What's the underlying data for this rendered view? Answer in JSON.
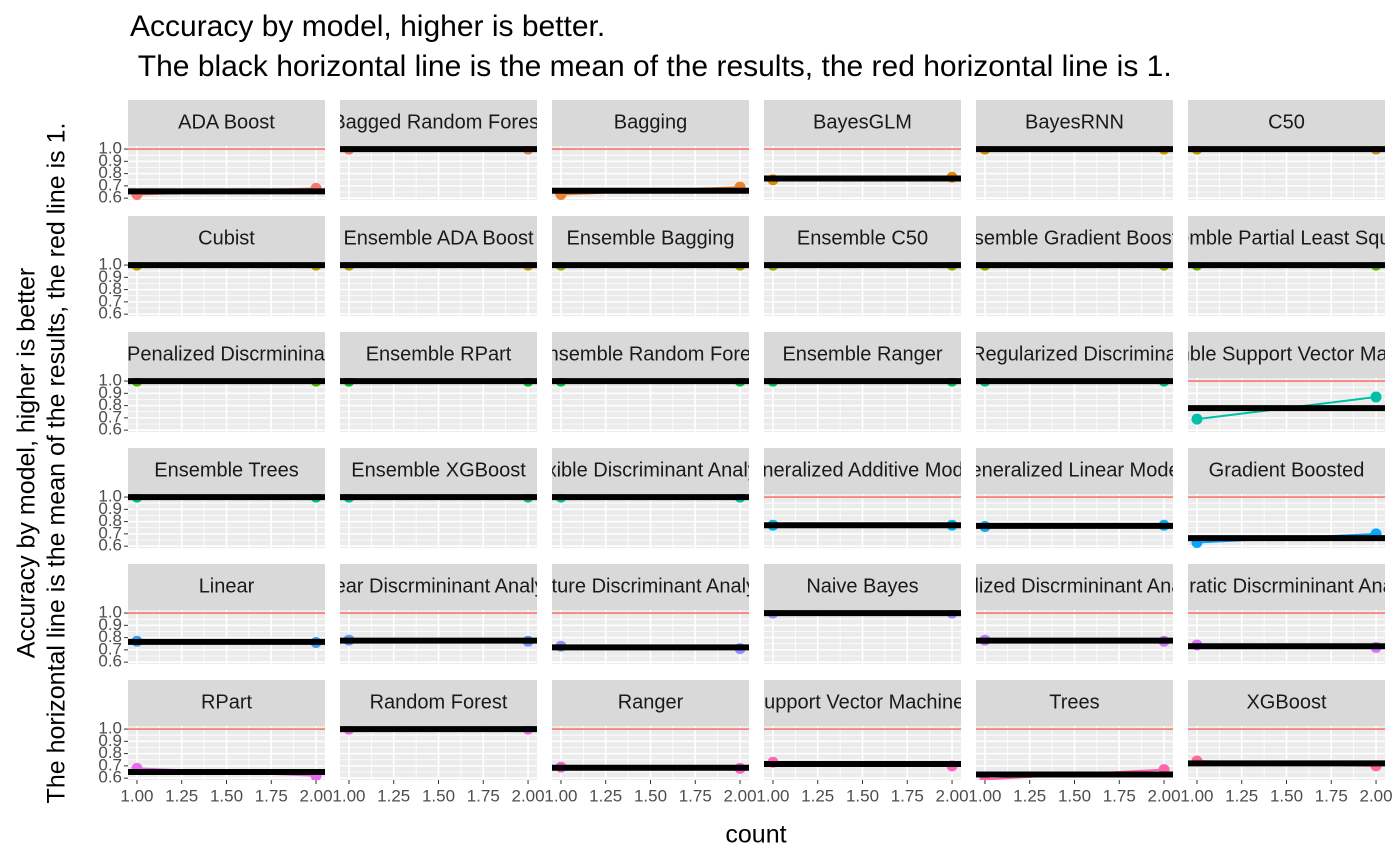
{
  "chart_data": {
    "type": "line",
    "title": "Accuracy by model, higher is better.",
    "subtitle": " The black horizontal line is the mean of the results, the red horizontal line is 1.",
    "x_label": "count",
    "y_label": [
      "Accuracy by model, higher is better",
      "The horizontal line is the mean of the results, the red line is 1."
    ],
    "xlim": [
      0.95,
      2.05
    ],
    "xticks": [
      {
        "value": 1,
        "label": "1.00"
      },
      {
        "value": 1.25,
        "label": "1.25"
      },
      {
        "value": 1.5,
        "label": "1.50"
      },
      {
        "value": 1.75,
        "label": "1.75"
      },
      {
        "value": 2,
        "label": "2.00"
      }
    ],
    "ylim": [
      0.585,
      1.025
    ],
    "yticks": [
      0.6,
      0.7,
      0.8,
      0.9,
      {
        "value": 1,
        "label": "1.0"
      }
    ],
    "grid": true,
    "columns": 6,
    "mean_color": "#000000",
    "reference_line": {
      "value": 1,
      "color": "#F8766D"
    },
    "panels": [
      {
        "name": "ADA Boost",
        "color": "#F8766D",
        "x": [
          1,
          2
        ],
        "values": [
          0.63,
          0.68
        ],
        "mean": 0.655
      },
      {
        "name": "Bagged Random Forest",
        "color": "#F27D53",
        "x": [
          1,
          2
        ],
        "values": [
          1,
          1
        ],
        "mean": 1
      },
      {
        "name": "Bagging",
        "color": "#EA8331",
        "x": [
          1,
          2
        ],
        "values": [
          0.63,
          0.69
        ],
        "mean": 0.66
      },
      {
        "name": "BayesGLM",
        "color": "#E18A00",
        "x": [
          1,
          2
        ],
        "values": [
          0.75,
          0.77
        ],
        "mean": 0.76
      },
      {
        "name": "BayesRNN",
        "color": "#D89000",
        "x": [
          1,
          2
        ],
        "values": [
          1,
          1
        ],
        "mean": 1
      },
      {
        "name": "C50",
        "color": "#CD9600",
        "x": [
          1,
          2
        ],
        "values": [
          1,
          1
        ],
        "mean": 1
      },
      {
        "name": "Cubist",
        "color": "#C09B00",
        "x": [
          1,
          2
        ],
        "values": [
          1,
          1
        ],
        "mean": 1
      },
      {
        "name": "Ensemble ADA Boost",
        "color": "#B3A000",
        "x": [
          1,
          2
        ],
        "values": [
          1,
          1
        ],
        "mean": 1
      },
      {
        "name": "Ensemble Bagging",
        "color": "#A3A500",
        "x": [
          1,
          2
        ],
        "values": [
          1,
          1
        ],
        "mean": 1
      },
      {
        "name": "Ensemble C50",
        "color": "#93AA00",
        "x": [
          1,
          2
        ],
        "values": [
          1,
          1
        ],
        "mean": 1
      },
      {
        "name": "Ensemble Gradient Boosted",
        "color": "#7FAE00",
        "x": [
          1,
          2
        ],
        "values": [
          1,
          1
        ],
        "mean": 1
      },
      {
        "name": "Ensemble Partial Least Squares",
        "color": "#67B100",
        "x": [
          1,
          2
        ],
        "values": [
          1,
          1
        ],
        "mean": 1
      },
      {
        "name": "Ensemble Penalized Discrmininant Analysis",
        "color": "#46B500",
        "x": [
          1,
          2
        ],
        "values": [
          1,
          1
        ],
        "mean": 1
      },
      {
        "name": "Ensemble RPart",
        "color": "#00B81F",
        "x": [
          1,
          2
        ],
        "values": [
          1,
          1
        ],
        "mean": 1
      },
      {
        "name": "Ensemble Random Forest",
        "color": "#00BA42",
        "x": [
          1,
          2
        ],
        "values": [
          1,
          1
        ],
        "mean": 1
      },
      {
        "name": "Ensemble Ranger",
        "color": "#00BC5A",
        "x": [
          1,
          2
        ],
        "values": [
          1,
          1
        ],
        "mean": 1
      },
      {
        "name": "Ensemble Regularized Discriminant Analysis",
        "color": "#00BE6E",
        "x": [
          1,
          2
        ],
        "values": [
          1,
          1
        ],
        "mean": 1
      },
      {
        "name": "Ensemble Support Vector Machines",
        "color": "#00C0AA",
        "x": [
          1,
          2
        ],
        "values": [
          0.69,
          0.87
        ],
        "mean": 0.78
      },
      {
        "name": "Ensemble Trees",
        "color": "#00C091",
        "x": [
          1,
          2
        ],
        "values": [
          1,
          1
        ],
        "mean": 1
      },
      {
        "name": "Ensemble XGBoost",
        "color": "#00C0A2",
        "x": [
          1,
          2
        ],
        "values": [
          1,
          1
        ],
        "mean": 1
      },
      {
        "name": "Flexible Discriminant Analysis",
        "color": "#00C0B2",
        "x": [
          1,
          2
        ],
        "values": [
          1,
          1
        ],
        "mean": 1
      },
      {
        "name": "Generalized Additive Models",
        "color": "#00B5EA",
        "x": [
          1,
          2
        ],
        "values": [
          0.77,
          0.77
        ],
        "mean": 0.77
      },
      {
        "name": "Generalized Linear Models",
        "color": "#00AFF5",
        "x": [
          1,
          2
        ],
        "values": [
          0.76,
          0.77
        ],
        "mean": 0.765
      },
      {
        "name": "Gradient Boosted",
        "color": "#00A9FF",
        "x": [
          1,
          2
        ],
        "values": [
          0.63,
          0.7
        ],
        "mean": 0.665
      },
      {
        "name": "Linear",
        "color": "#35A2FF",
        "x": [
          1,
          2
        ],
        "values": [
          0.77,
          0.76
        ],
        "mean": 0.765
      },
      {
        "name": "Linear Discrmininant Analysis",
        "color": "#619CFF",
        "x": [
          1,
          2
        ],
        "values": [
          0.78,
          0.77
        ],
        "mean": 0.775
      },
      {
        "name": "Mixture Discriminant Analysis",
        "color": "#8F91FF",
        "x": [
          1,
          2
        ],
        "values": [
          0.73,
          0.71
        ],
        "mean": 0.72
      },
      {
        "name": "Naive Bayes",
        "color": "#AF86FF",
        "x": [
          1,
          2
        ],
        "values": [
          1,
          1
        ],
        "mean": 1
      },
      {
        "name": "Penalized Discrmininant Analysis",
        "color": "#C77CFF",
        "x": [
          1,
          2
        ],
        "values": [
          0.78,
          0.77
        ],
        "mean": 0.775
      },
      {
        "name": "Quadratic Discrmininant Analysis",
        "color": "#DC71FA",
        "x": [
          1,
          2
        ],
        "values": [
          0.74,
          0.72
        ],
        "mean": 0.73
      },
      {
        "name": "RPart",
        "color": "#EB69F0",
        "x": [
          1,
          2
        ],
        "values": [
          0.68,
          0.62
        ],
        "mean": 0.65
      },
      {
        "name": "Random Forest",
        "color": "#F763E2",
        "x": [
          1,
          2
        ],
        "values": [
          1,
          1
        ],
        "mean": 1
      },
      {
        "name": "Ranger",
        "color": "#FD61D1",
        "x": [
          1,
          2
        ],
        "values": [
          0.69,
          0.68
        ],
        "mean": 0.685
      },
      {
        "name": "Support Vector Machines",
        "color": "#FF62BE",
        "x": [
          1,
          2
        ],
        "values": [
          0.73,
          0.7
        ],
        "mean": 0.715
      },
      {
        "name": "Trees",
        "color": "#FF65AA",
        "x": [
          1,
          2
        ],
        "values": [
          0.59,
          0.67
        ],
        "mean": 0.63
      },
      {
        "name": "XGBoost",
        "color": "#FF6C91",
        "x": [
          1,
          2
        ],
        "values": [
          0.74,
          0.7
        ],
        "mean": 0.72
      }
    ]
  }
}
